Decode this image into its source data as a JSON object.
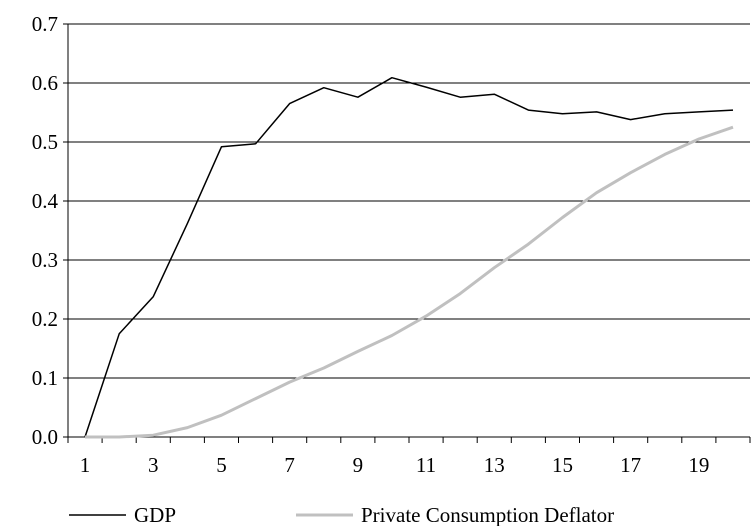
{
  "chart_data": {
    "type": "line",
    "title": "",
    "xlabel": "",
    "ylabel": "",
    "x": [
      1,
      2,
      3,
      4,
      5,
      6,
      7,
      8,
      9,
      10,
      11,
      12,
      13,
      14,
      15,
      16,
      17,
      18,
      19,
      20
    ],
    "x_tick_labels": [
      "1",
      "3",
      "5",
      "7",
      "9",
      "11",
      "13",
      "15",
      "17",
      "19"
    ],
    "y_tick_labels": [
      "0.0",
      "0.1",
      "0.2",
      "0.3",
      "0.4",
      "0.5",
      "0.6",
      "0.7"
    ],
    "ylim": [
      0,
      0.7
    ],
    "grid": "horizontal",
    "legend_position": "bottom",
    "series": [
      {
        "name": "GDP",
        "color": "#000000",
        "values": [
          0.0,
          0.175,
          0.238,
          0.362,
          0.492,
          0.497,
          0.565,
          0.592,
          0.576,
          0.609,
          0.593,
          0.576,
          0.581,
          0.554,
          0.548,
          0.551,
          0.538,
          0.548,
          0.551,
          0.554
        ]
      },
      {
        "name": "Private Consumption Deflator",
        "color": "#c0c0c0",
        "values": [
          0.0,
          0.0,
          0.003,
          0.016,
          0.037,
          0.065,
          0.093,
          0.117,
          0.145,
          0.172,
          0.205,
          0.243,
          0.287,
          0.327,
          0.372,
          0.414,
          0.448,
          0.479,
          0.505,
          0.525
        ]
      }
    ]
  }
}
